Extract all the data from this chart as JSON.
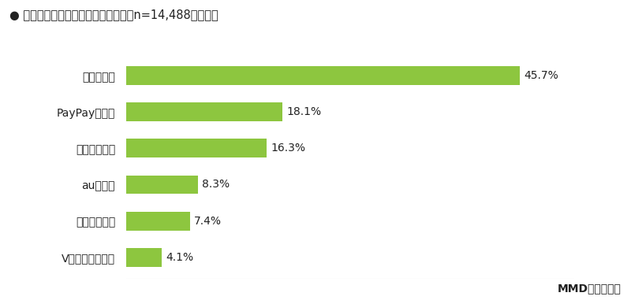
{
  "title": "● 最も意識しているポイント経済圏（n=14,488、単数）",
  "categories": [
    "Vポイント経済圏",
    "イオン経済圏",
    "au経済圏",
    "ドコモ経済圏",
    "PayPay経済圏",
    "楽天経済圏"
  ],
  "values": [
    4.1,
    7.4,
    8.3,
    16.3,
    18.1,
    45.7
  ],
  "bar_color": "#8DC63F",
  "label_color": "#222222",
  "title_color": "#222222",
  "background_color": "#ffffff",
  "footer": "MMD研究所調べ",
  "xlim": [
    0,
    52
  ],
  "bar_height": 0.52,
  "title_fontsize": 10.5,
  "label_fontsize": 10,
  "value_fontsize": 10,
  "footer_fontsize": 10
}
